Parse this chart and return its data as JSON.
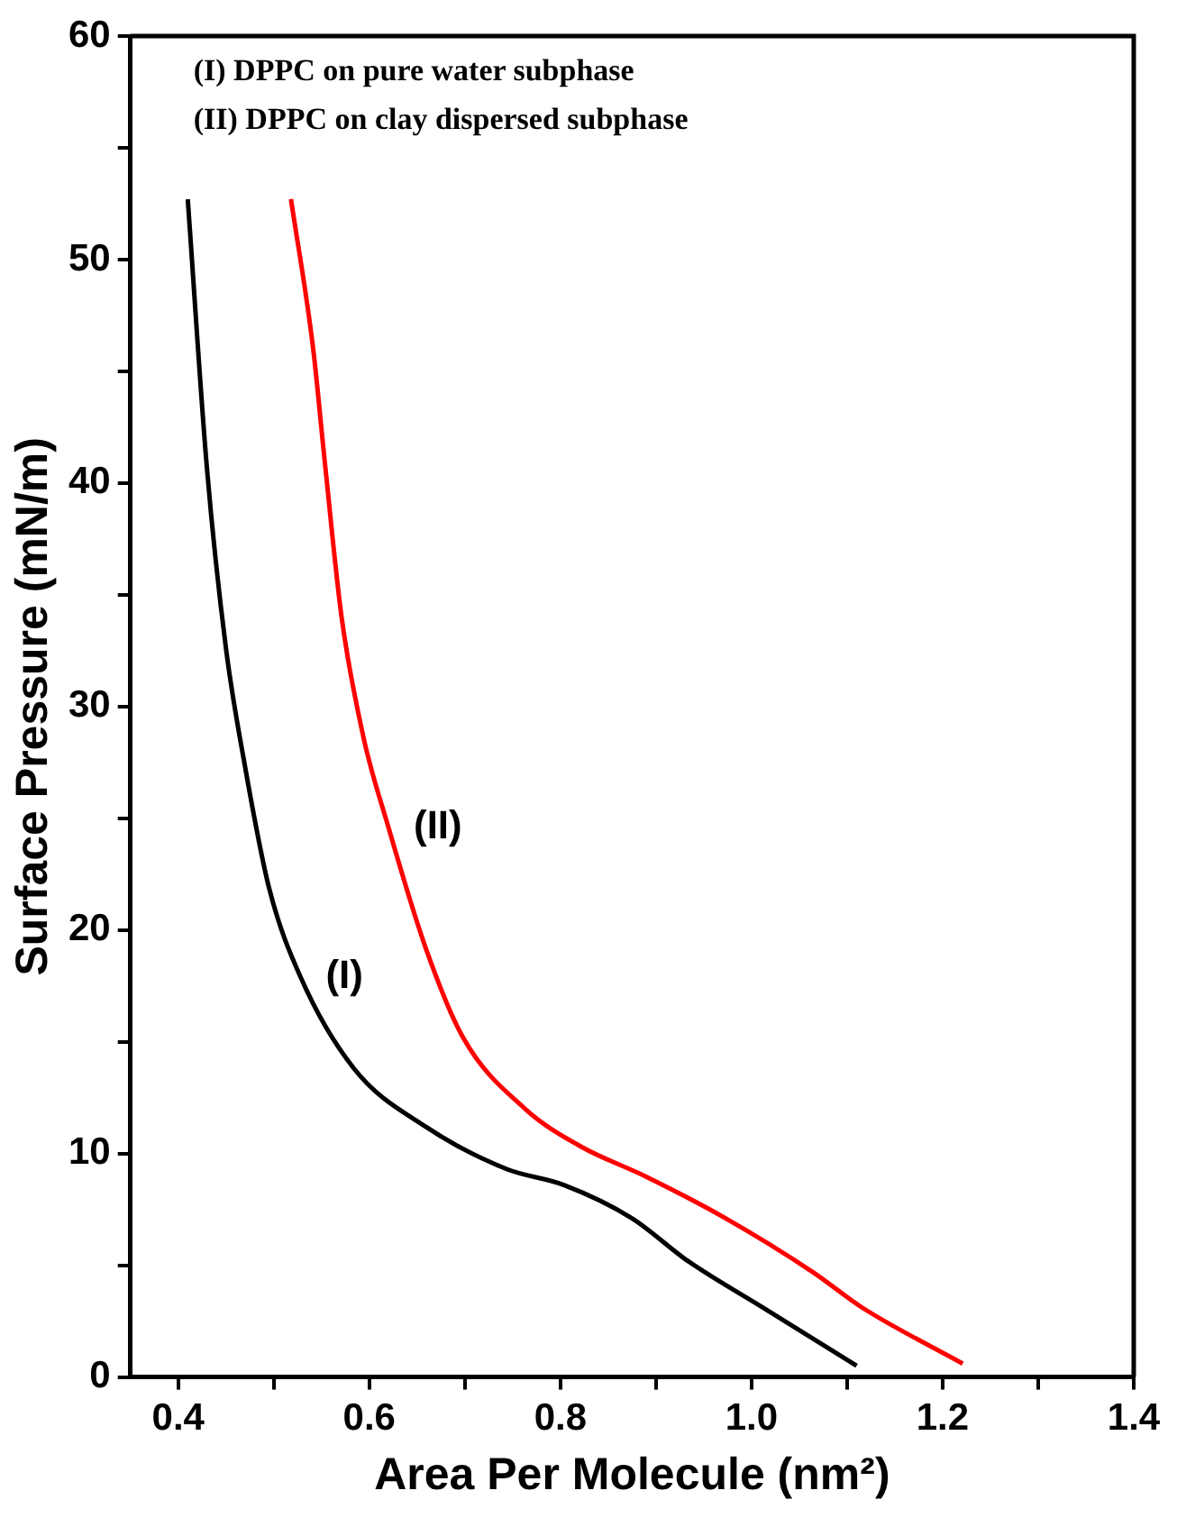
{
  "chart_data": {
    "type": "line",
    "xlabel": "Area Per Molecule (nm²)",
    "ylabel": "Surface Pressure (mN/m)",
    "xlim": [
      0.35,
      1.4
    ],
    "xticks": [
      0.4,
      {
        "value": 0.5,
        "label": null
      },
      0.6,
      {
        "value": 0.7,
        "label": null
      },
      0.8,
      {
        "value": 0.9,
        "label": null
      },
      {
        "value": 1,
        "label": "1.0"
      },
      {
        "value": 1.1,
        "label": null
      },
      1.2,
      {
        "value": 1.3,
        "label": null
      },
      1.4
    ],
    "ylim": [
      0,
      60
    ],
    "yticks": [
      0,
      {
        "value": 5,
        "label": null
      },
      10,
      {
        "value": 15,
        "label": null
      },
      20,
      {
        "value": 25,
        "label": null
      },
      30,
      {
        "value": 35,
        "label": null
      },
      40,
      {
        "value": 45,
        "label": null
      },
      50,
      {
        "value": 55,
        "label": null
      },
      60
    ],
    "grid": false,
    "legend": false,
    "marker": "none",
    "line_style": "solid",
    "series": [
      {
        "name": "(I)",
        "color": "#000000",
        "x": [
          0.41,
          0.43,
          0.45,
          0.47,
          0.495,
          0.528,
          0.584,
          0.659,
          0.744,
          0.803,
          0.875,
          0.933,
          1.012,
          1.11
        ],
        "values": [
          52.7,
          40.7,
          32.6,
          27.3,
          21.9,
          17.9,
          13.8,
          11.2,
          9.3,
          8.6,
          7.1,
          5.2,
          3.1,
          0.5
        ]
      },
      {
        "name": "(II)",
        "color": "#ff0000",
        "x": [
          0.518,
          0.541,
          0.554,
          0.571,
          0.594,
          0.62,
          0.659,
          0.698,
          0.763,
          0.822,
          0.888,
          0.973,
          1.064,
          1.116,
          1.221
        ],
        "values": [
          52.7,
          46.1,
          40.7,
          34,
          28.6,
          24.6,
          19.2,
          15.2,
          12,
          10.3,
          9,
          7.1,
          4.7,
          3.1,
          0.6
        ]
      }
    ],
    "annotations": [
      "(I) DPPC on pure water subphase",
      "(II) DPPC on clay dispersed subphase"
    ]
  }
}
